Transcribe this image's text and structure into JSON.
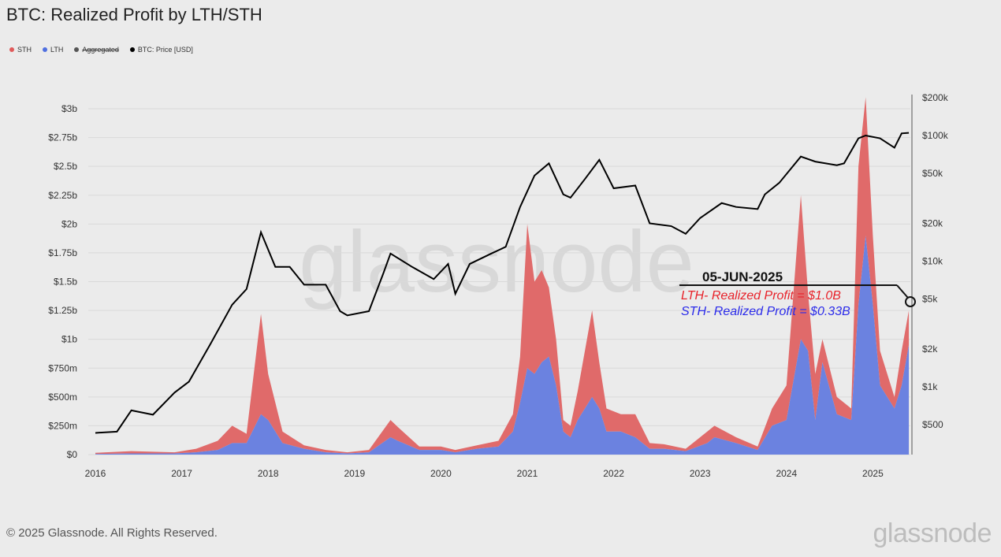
{
  "title": "BTC: Realized Profit by LTH/STH",
  "legend": [
    {
      "label": "STH",
      "color": "#e05a5a"
    },
    {
      "label": "LTH",
      "color": "#4f6fe0"
    },
    {
      "label": "Aggregated",
      "color": "#555555",
      "disabled": true
    },
    {
      "label": "BTC: Price [USD]",
      "color": "#000000"
    }
  ],
  "footer": "© 2025 Glassnode. All Rights Reserved.",
  "logo": "glassnode",
  "watermark": "glassnode",
  "annotation": {
    "date": "05-JUN-2025",
    "lth": "LTH- Realized Profit = $1.0B",
    "sth": "STH- Realized Profit = $0.33B",
    "lth_color": "#e8222a",
    "sth_color": "#2b2bea"
  },
  "chart_data": {
    "type": "area",
    "title": "BTC: Realized Profit by LTH/STH",
    "x_ticks": [
      "2016",
      "2017",
      "2018",
      "2019",
      "2020",
      "2021",
      "2022",
      "2023",
      "2024",
      "2025"
    ],
    "left_axis": {
      "ticks": [
        "$0",
        "$250m",
        "$500m",
        "$750m",
        "$1b",
        "$1.25b",
        "$1.5b",
        "$1.75b",
        "$2b",
        "$2.25b",
        "$2.5b",
        "$2.75b",
        "$3b"
      ],
      "range": [
        0,
        3
      ],
      "unit": "USD billions"
    },
    "right_axis": {
      "scale": "log",
      "ticks": [
        "$500",
        "$1k",
        "$2k",
        "$5k",
        "$10k",
        "$20k",
        "$50k",
        "$100k",
        "$200k"
      ],
      "tick_values": [
        500,
        1000,
        2000,
        5000,
        10000,
        20000,
        50000,
        100000,
        200000
      ]
    },
    "grid": true,
    "stacked": true,
    "dates": [
      "2016-01",
      "2016-06",
      "2016-12",
      "2017-03",
      "2017-06",
      "2017-08",
      "2017-10",
      "2017-12",
      "2018-01",
      "2018-03",
      "2018-06",
      "2018-09",
      "2018-12",
      "2019-03",
      "2019-06",
      "2019-07",
      "2019-10",
      "2020-01",
      "2020-03",
      "2020-06",
      "2020-09",
      "2020-11",
      "2020-12",
      "2021-01",
      "2021-02",
      "2021-03",
      "2021-04",
      "2021-05",
      "2021-06",
      "2021-07",
      "2021-08",
      "2021-10",
      "2021-11",
      "2021-12",
      "2022-02",
      "2022-04",
      "2022-06",
      "2022-08",
      "2022-11",
      "2023-02",
      "2023-03",
      "2023-06",
      "2023-09",
      "2023-11",
      "2024-01",
      "2024-03",
      "2024-04",
      "2024-05",
      "2024-06",
      "2024-08",
      "2024-10",
      "2024-11",
      "2024-12",
      "2025-01",
      "2025-02",
      "2025-04",
      "2025-05",
      "2025-06"
    ],
    "series": [
      {
        "name": "LTH",
        "color": "#6b82e0",
        "values": [
          0.005,
          0.01,
          0.01,
          0.02,
          0.04,
          0.1,
          0.1,
          0.35,
          0.3,
          0.1,
          0.05,
          0.02,
          0.01,
          0.02,
          0.15,
          0.12,
          0.04,
          0.04,
          0.02,
          0.05,
          0.07,
          0.2,
          0.45,
          0.75,
          0.7,
          0.8,
          0.85,
          0.6,
          0.2,
          0.15,
          0.3,
          0.5,
          0.4,
          0.2,
          0.2,
          0.15,
          0.05,
          0.05,
          0.03,
          0.1,
          0.15,
          0.1,
          0.04,
          0.25,
          0.3,
          1.0,
          0.9,
          0.3,
          0.8,
          0.35,
          0.3,
          1.3,
          1.9,
          1.3,
          0.6,
          0.4,
          0.6,
          0.95
        ]
      },
      {
        "name": "STH",
        "color": "#e06a6a",
        "values": [
          0.01,
          0.02,
          0.01,
          0.03,
          0.08,
          0.15,
          0.08,
          0.87,
          0.4,
          0.1,
          0.03,
          0.02,
          0.01,
          0.02,
          0.15,
          0.12,
          0.03,
          0.03,
          0.02,
          0.03,
          0.05,
          0.15,
          0.4,
          1.25,
          0.8,
          0.8,
          0.6,
          0.4,
          0.1,
          0.1,
          0.25,
          0.75,
          0.4,
          0.2,
          0.15,
          0.2,
          0.05,
          0.04,
          0.02,
          0.1,
          0.1,
          0.05,
          0.03,
          0.15,
          0.3,
          1.25,
          0.5,
          0.4,
          0.2,
          0.15,
          0.1,
          1.2,
          1.2,
          0.6,
          0.3,
          0.1,
          0.3,
          0.3
        ]
      }
    ],
    "price": {
      "name": "BTC: Price [USD]",
      "color": "#000000",
      "dates": [
        "2016-01",
        "2016-04",
        "2016-06",
        "2016-09",
        "2016-12",
        "2017-02",
        "2017-05",
        "2017-08",
        "2017-10",
        "2017-12",
        "2018-02",
        "2018-04",
        "2018-06",
        "2018-09",
        "2018-11",
        "2018-12",
        "2019-03",
        "2019-05",
        "2019-06",
        "2019-09",
        "2019-12",
        "2020-02",
        "2020-03",
        "2020-05",
        "2020-08",
        "2020-10",
        "2020-12",
        "2021-02",
        "2021-04",
        "2021-06",
        "2021-07",
        "2021-09",
        "2021-11",
        "2022-01",
        "2022-04",
        "2022-06",
        "2022-09",
        "2022-11",
        "2023-01",
        "2023-04",
        "2023-06",
        "2023-09",
        "2023-10",
        "2023-12",
        "2024-03",
        "2024-05",
        "2024-08",
        "2024-09",
        "2024-11",
        "2024-12",
        "2025-02",
        "2025-04",
        "2025-05",
        "2025-06"
      ],
      "values": [
        430,
        440,
        650,
        600,
        900,
        1100,
        2200,
        4500,
        6000,
        17000,
        9000,
        9000,
        6500,
        6500,
        4000,
        3700,
        4000,
        8000,
        11500,
        9000,
        7200,
        9500,
        5500,
        9500,
        11500,
        13000,
        27000,
        48000,
        60000,
        34000,
        32000,
        45000,
        64000,
        38000,
        40000,
        20000,
        19000,
        16500,
        22000,
        29000,
        27000,
        26000,
        34000,
        42000,
        68000,
        62000,
        58000,
        60000,
        95000,
        100000,
        95000,
        80000,
        104000,
        105000
      ]
    }
  }
}
